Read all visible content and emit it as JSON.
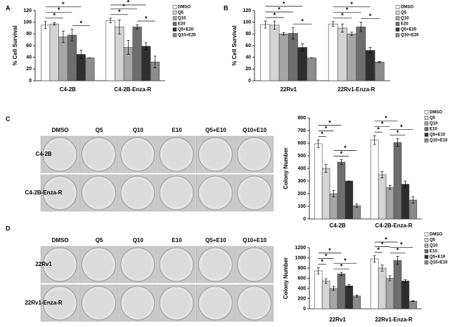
{
  "panel_labels": [
    "A",
    "B",
    "C",
    "D"
  ],
  "photo_grids": [
    {
      "columns": [
        "DMSO",
        "Q5",
        "Q10",
        "E10",
        "Q5+E10",
        "Q10+E10"
      ],
      "rows": [
        "C4-2B",
        "C4-2B-Enza-R"
      ]
    },
    {
      "columns": [
        "DMSO",
        "Q5",
        "Q10",
        "E10",
        "Q5+E10",
        "Q10+E10"
      ],
      "rows": [
        "22Rv1",
        "22Rv1-Enza-R"
      ]
    }
  ],
  "chart_data": [
    {
      "type": "bar",
      "ylabel": "% Cell Survival",
      "categories": [
        "C4-2B",
        "C4-2B-Enza-R"
      ],
      "ylim": [
        0,
        120
      ],
      "yticks": [
        0,
        20,
        40,
        60,
        80,
        100,
        120
      ],
      "series": [
        {
          "name": "DMSO",
          "color": "#ffffff",
          "values": [
            95,
            103
          ],
          "errors": [
            6,
            4
          ]
        },
        {
          "name": "Q5",
          "color": "#d4d4d4",
          "values": [
            97,
            92
          ],
          "errors": [
            2,
            12
          ]
        },
        {
          "name": "Q10",
          "color": "#a6a6a6",
          "values": [
            75,
            57
          ],
          "errors": [
            10,
            12
          ]
        },
        {
          "name": "E20",
          "color": "#6e6e6e",
          "values": [
            78,
            92
          ],
          "errors": [
            10,
            4
          ]
        },
        {
          "name": "Q5+E20",
          "color": "#2e2e2e",
          "values": [
            45,
            59
          ],
          "errors": [
            7,
            6
          ]
        },
        {
          "name": "Q10+E20",
          "color": "#8c8c8c",
          "values": [
            39,
            32
          ],
          "errors": [
            0,
            10
          ]
        }
      ],
      "significance": [
        [
          {
            "label": "*",
            "from": "DMSO",
            "to": "Q5+E20"
          },
          {
            "label": "*",
            "from": "DMSO",
            "to": "E20"
          },
          {
            "label": "*",
            "from": "DMSO",
            "to": "Q10"
          },
          {
            "label": "*",
            "from": "E20",
            "to": "Q10+E20"
          }
        ],
        [
          {
            "label": "*",
            "from": "DMSO",
            "to": "Q5+E20"
          },
          {
            "label": "*",
            "from": "DMSO",
            "to": "E20"
          },
          {
            "label": "*",
            "from": "DMSO",
            "to": "Q10"
          },
          {
            "label": "*",
            "from": "E20",
            "to": "Q10+E20"
          }
        ]
      ]
    },
    {
      "type": "bar",
      "ylabel": "% Cell Survival",
      "categories": [
        "22Rv1",
        "22Rv1-Enza-R"
      ],
      "ylim": [
        0,
        120
      ],
      "yticks": [
        0,
        20,
        40,
        60,
        80,
        100,
        120
      ],
      "series": [
        {
          "name": "DMSO",
          "color": "#ffffff",
          "values": [
            96,
            97
          ],
          "errors": [
            6,
            4
          ]
        },
        {
          "name": "Q5",
          "color": "#d4d4d4",
          "values": [
            95,
            90
          ],
          "errors": [
            7,
            7
          ]
        },
        {
          "name": "Q10",
          "color": "#a6a6a6",
          "values": [
            80,
            80
          ],
          "errors": [
            2,
            3
          ]
        },
        {
          "name": "E20",
          "color": "#6e6e6e",
          "values": [
            81,
            92
          ],
          "errors": [
            10,
            8
          ]
        },
        {
          "name": "Q5+E20",
          "color": "#2e2e2e",
          "values": [
            57,
            52
          ],
          "errors": [
            6,
            5
          ]
        },
        {
          "name": "Q10+E20",
          "color": "#8c8c8c",
          "values": [
            39,
            32
          ],
          "errors": [
            0,
            1
          ]
        }
      ],
      "significance": [
        [
          {
            "label": "*",
            "from": "DMSO",
            "to": "Q5+E20"
          },
          {
            "label": "*",
            "from": "DMSO",
            "to": "E20"
          },
          {
            "label": "*",
            "from": "DMSO",
            "to": "Q10"
          },
          {
            "label": "*",
            "from": "E20",
            "to": "Q10+E20"
          }
        ],
        [
          {
            "label": "*",
            "from": "DMSO",
            "to": "Q5+E20"
          },
          {
            "label": "*",
            "from": "DMSO",
            "to": "E20"
          },
          {
            "label": "*",
            "from": "DMSO",
            "to": "Q10"
          },
          {
            "label": "*",
            "from": "E20",
            "to": "Q10+E20"
          }
        ]
      ]
    },
    {
      "type": "bar",
      "ylabel": "Colony Number",
      "categories": [
        "C4-2B",
        "C4-2B-Enza-R"
      ],
      "ylim": [
        0,
        800
      ],
      "yticks": [
        0,
        100,
        200,
        300,
        400,
        500,
        600,
        700,
        800
      ],
      "series": [
        {
          "name": "DMSO",
          "color": "#ffffff",
          "values": [
            595,
            625
          ],
          "errors": [
            30,
            35
          ]
        },
        {
          "name": "Q5",
          "color": "#d4d4d4",
          "values": [
            400,
            350
          ],
          "errors": [
            30,
            25
          ]
        },
        {
          "name": "Q10",
          "color": "#a6a6a6",
          "values": [
            200,
            250
          ],
          "errors": [
            25,
            15
          ]
        },
        {
          "name": "E10",
          "color": "#6e6e6e",
          "values": [
            450,
            605
          ],
          "errors": [
            20,
            30
          ]
        },
        {
          "name": "Q5+E10",
          "color": "#2e2e2e",
          "values": [
            300,
            275
          ],
          "errors": [
            0,
            25
          ]
        },
        {
          "name": "Q10+E10",
          "color": "#8c8c8c",
          "values": [
            105,
            150
          ],
          "errors": [
            15,
            25
          ]
        }
      ],
      "significance": [
        [
          {
            "label": "*",
            "from": "DMSO",
            "to": "E10"
          },
          {
            "label": "*",
            "from": "DMSO",
            "to": "Q10"
          },
          {
            "label": "*",
            "from": "DMSO",
            "to": "Q5"
          },
          {
            "label": "*",
            "from": "Q10",
            "to": "Q10+E10"
          },
          {
            "label": "*",
            "from": "Q10",
            "to": "Q5+E10"
          }
        ],
        [
          {
            "label": "*",
            "from": "DMSO",
            "to": "E10"
          },
          {
            "label": "*",
            "from": "DMSO",
            "to": "Q10"
          },
          {
            "label": "*",
            "from": "DMSO",
            "to": "Q5"
          },
          {
            "label": "*",
            "from": "Q10",
            "to": "Q10+E10"
          },
          {
            "label": "*",
            "from": "Q10",
            "to": "Q5+E10"
          }
        ]
      ]
    },
    {
      "type": "bar",
      "ylabel": "Colony Number",
      "categories": [
        "22Rv1",
        "22Rv1-Enza-R"
      ],
      "ylim": [
        0,
        1200
      ],
      "yticks": [
        0,
        200,
        400,
        600,
        800,
        1000,
        1200
      ],
      "series": [
        {
          "name": "DMSO",
          "color": "#ffffff",
          "values": [
            745,
            980
          ],
          "errors": [
            60,
            60
          ]
        },
        {
          "name": "Q5",
          "color": "#d4d4d4",
          "values": [
            545,
            800
          ],
          "errors": [
            45,
            60
          ]
        },
        {
          "name": "Q10",
          "color": "#a6a6a6",
          "values": [
            400,
            600
          ],
          "errors": [
            40,
            50
          ]
        },
        {
          "name": "E10",
          "color": "#6e6e6e",
          "values": [
            685,
            950
          ],
          "errors": [
            30,
            80
          ]
        },
        {
          "name": "Q5+E10",
          "color": "#2e2e2e",
          "values": [
            450,
            545
          ],
          "errors": [
            30,
            30
          ]
        },
        {
          "name": "Q10+E10",
          "color": "#8c8c8c",
          "values": [
            250,
            150
          ],
          "errors": [
            20,
            10
          ]
        }
      ],
      "significance": [
        [
          {
            "label": "*",
            "from": "DMSO",
            "to": "E10"
          },
          {
            "label": "*",
            "from": "DMSO",
            "to": "Q10"
          },
          {
            "label": "*",
            "from": "DMSO",
            "to": "Q5"
          },
          {
            "label": "*",
            "from": "Q10",
            "to": "Q10+E10"
          },
          {
            "label": "*",
            "from": "Q10",
            "to": "Q5+E10"
          }
        ],
        [
          {
            "label": "*",
            "from": "DMSO",
            "to": "E10"
          },
          {
            "label": "*",
            "from": "DMSO",
            "to": "Q10"
          },
          {
            "label": "*",
            "from": "DMSO",
            "to": "Q5"
          },
          {
            "label": "*",
            "from": "Q10",
            "to": "Q10+E10"
          },
          {
            "label": "*",
            "from": "Q10",
            "to": "Q5+E10"
          }
        ]
      ]
    }
  ]
}
